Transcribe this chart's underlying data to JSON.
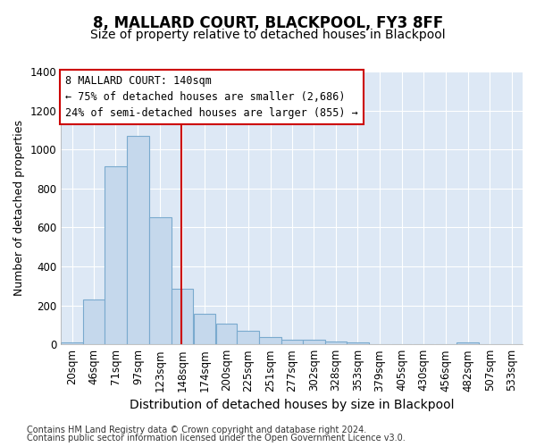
{
  "title": "8, MALLARD COURT, BLACKPOOL, FY3 8FF",
  "subtitle": "Size of property relative to detached houses in Blackpool",
  "xlabel": "Distribution of detached houses by size in Blackpool",
  "ylabel": "Number of detached properties",
  "footnote1": "Contains HM Land Registry data © Crown copyright and database right 2024.",
  "footnote2": "Contains public sector information licensed under the Open Government Licence v3.0.",
  "annotation_line1": "8 MALLARD COURT: 140sqm",
  "annotation_line2": "← 75% of detached houses are smaller (2,686)",
  "annotation_line3": "24% of semi-detached houses are larger (855) →",
  "bar_color": "#c5d8ec",
  "bar_edge_color": "#7aaace",
  "vline_color": "#cc0000",
  "vline_x": 148,
  "categories": [
    "20sqm",
    "46sqm",
    "71sqm",
    "97sqm",
    "123sqm",
    "148sqm",
    "174sqm",
    "200sqm",
    "225sqm",
    "251sqm",
    "277sqm",
    "302sqm",
    "328sqm",
    "353sqm",
    "379sqm",
    "405sqm",
    "430sqm",
    "456sqm",
    "482sqm",
    "507sqm",
    "533sqm"
  ],
  "bin_edges": [
    7,
    33,
    58,
    84,
    110,
    136,
    162,
    188,
    213,
    239,
    265,
    290,
    316,
    341,
    367,
    393,
    418,
    444,
    470,
    496,
    521,
    547
  ],
  "values": [
    12,
    228,
    915,
    1070,
    650,
    285,
    158,
    105,
    68,
    38,
    22,
    22,
    15,
    12,
    0,
    0,
    0,
    0,
    12,
    0,
    0
  ],
  "ylim": [
    0,
    1400
  ],
  "yticks": [
    0,
    200,
    400,
    600,
    800,
    1000,
    1200,
    1400
  ],
  "background_color": "#ffffff",
  "plot_bg_color": "#dde8f5",
  "grid_color": "#ffffff",
  "title_fontsize": 12,
  "subtitle_fontsize": 10,
  "xlabel_fontsize": 10,
  "ylabel_fontsize": 9,
  "tick_fontsize": 8.5,
  "annotation_fontsize": 8.5,
  "footnote_fontsize": 7
}
